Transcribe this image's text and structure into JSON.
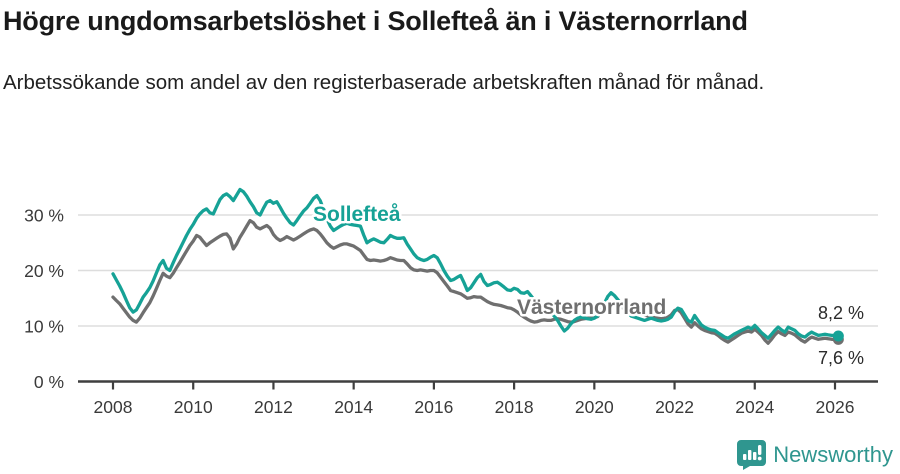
{
  "title": "Högre ungdomsarbetslöshet i Sollefteå än i Västernorrland",
  "subtitle": "Arbetssökande som andel av den registerbaserade arbetskraften månad för månad.",
  "logo": {
    "text": "Newsworthy",
    "icon": "newsworthy-chart-bubble-icon",
    "color": "#2f968f"
  },
  "colors": {
    "solleftea_line": "#16a296",
    "vasternorrland_line": "#6f6f6f",
    "gridline": "#dddddd",
    "axis": "#3f3f3f",
    "background": "#ffffff"
  },
  "chart_data": {
    "type": "line",
    "title": "Högre ungdomsarbetslöshet i Sollefteå än i Västernorrland",
    "subtitle": "Arbetssökande som andel av den registerbaserade arbetskraften månad för månad.",
    "x_unit": "month",
    "x_start": "2008-01",
    "x_end": "2026-02",
    "x_tick_labels": [
      "2008",
      "2010",
      "2012",
      "2014",
      "2016",
      "2018",
      "2020",
      "2022",
      "2024",
      "2026"
    ],
    "y_ticks": [
      0,
      10,
      20,
      30
    ],
    "y_tick_labels": [
      "0 %",
      "10 %",
      "20 %",
      "30 %"
    ],
    "ylim": [
      0,
      36.5
    ],
    "grid": "horizontal",
    "legend": "inline-labels",
    "series": [
      {
        "name": "Sollefteå",
        "color": "#16a296",
        "end_label": "8,2 %",
        "last_value": 8.2,
        "values": [
          19.4,
          18.3,
          17.2,
          16.0,
          14.6,
          13.3,
          12.5,
          12.9,
          14.0,
          15.2,
          16.0,
          16.9,
          18.1,
          19.6,
          21.0,
          21.8,
          20.4,
          20.0,
          21.4,
          22.7,
          23.9,
          25.1,
          26.3,
          27.4,
          28.3,
          29.4,
          30.2,
          30.8,
          31.1,
          30.4,
          30.2,
          31.5,
          32.8,
          33.5,
          33.8,
          33.3,
          32.6,
          33.6,
          34.6,
          34.2,
          33.4,
          32.4,
          31.5,
          30.4,
          30.0,
          31.2,
          32.3,
          32.6,
          32.1,
          32.4,
          31.4,
          30.3,
          29.4,
          28.6,
          28.2,
          29.0,
          29.9,
          30.7,
          31.3,
          32.1,
          33.0,
          33.5,
          32.6,
          31.0,
          29.3,
          28.0,
          27.2,
          27.6,
          28.0,
          28.3,
          28.5,
          28.3,
          28.2,
          28.1,
          28.0,
          26.4,
          25.0,
          25.4,
          25.7,
          25.4,
          25.1,
          25.0,
          25.6,
          26.3,
          26.0,
          25.8,
          25.8,
          25.9,
          24.8,
          23.9,
          23.0,
          22.3,
          22.0,
          21.8,
          22.0,
          22.4,
          22.7,
          22.3,
          21.2,
          20.0,
          19.0,
          18.2,
          18.4,
          18.8,
          19.1,
          17.8,
          16.4,
          16.9,
          17.8,
          18.7,
          19.3,
          18.0,
          17.3,
          17.5,
          17.8,
          17.9,
          17.5,
          17.0,
          16.5,
          16.4,
          16.8,
          16.6,
          16.0,
          15.9,
          16.2,
          15.5,
          14.7,
          14.0,
          13.6,
          13.2,
          12.8,
          12.4,
          11.8,
          11.0,
          10.0,
          9.1,
          9.6,
          10.4,
          11.0,
          11.4,
          11.6,
          11.5,
          11.3,
          11.2,
          11.4,
          11.8,
          12.8,
          14.1,
          15.3,
          16.0,
          15.5,
          14.8,
          14.0,
          13.2,
          12.4,
          11.8,
          11.6,
          11.4,
          11.2,
          11.0,
          11.2,
          11.4,
          11.2,
          11.0,
          10.9,
          11.0,
          11.2,
          11.6,
          12.6,
          13.2,
          13.0,
          12.0,
          11.0,
          10.7,
          11.9,
          11.0,
          10.2,
          9.8,
          9.5,
          9.3,
          9.2,
          8.8,
          8.4,
          8.0,
          7.8,
          8.2,
          8.6,
          8.9,
          9.2,
          9.5,
          9.8,
          9.5,
          10.1,
          9.5,
          8.8,
          8.3,
          7.8,
          8.5,
          9.2,
          9.8,
          9.3,
          8.9,
          9.8,
          9.5,
          9.2,
          8.6,
          8.2,
          8.0,
          8.5,
          8.9,
          8.6,
          8.3,
          8.4,
          8.5,
          8.4,
          8.3,
          8.3,
          8.2
        ]
      },
      {
        "name": "Västernorrland",
        "color": "#6f6f6f",
        "end_label": "7,6 %",
        "last_value": 7.6,
        "values": [
          15.2,
          14.6,
          14.0,
          13.2,
          12.4,
          11.6,
          11.0,
          10.7,
          11.4,
          12.4,
          13.3,
          14.2,
          15.4,
          16.8,
          18.2,
          19.5,
          19.0,
          18.7,
          19.5,
          20.5,
          21.5,
          22.5,
          23.5,
          24.5,
          25.3,
          26.3,
          26.0,
          25.2,
          24.5,
          25.0,
          25.4,
          25.8,
          26.2,
          26.5,
          26.6,
          25.8,
          23.9,
          24.8,
          26.0,
          27.0,
          28.0,
          29.0,
          28.6,
          27.8,
          27.5,
          27.8,
          28.1,
          27.6,
          26.5,
          25.8,
          25.4,
          25.7,
          26.1,
          25.8,
          25.5,
          25.8,
          26.2,
          26.6,
          27.0,
          27.3,
          27.5,
          27.2,
          26.6,
          25.8,
          25.0,
          24.4,
          24.0,
          24.3,
          24.6,
          24.8,
          24.8,
          24.6,
          24.4,
          24.0,
          23.6,
          22.8,
          22.0,
          21.8,
          21.9,
          21.8,
          21.7,
          21.8,
          22.0,
          22.3,
          22.1,
          21.9,
          21.8,
          21.8,
          21.2,
          20.5,
          20.1,
          20.0,
          20.1,
          20.0,
          19.9,
          20.0,
          20.0,
          19.6,
          18.8,
          18.0,
          17.2,
          16.4,
          16.2,
          16.0,
          15.8,
          15.4,
          15.0,
          15.1,
          15.3,
          15.2,
          15.2,
          14.8,
          14.4,
          14.1,
          13.9,
          13.8,
          13.7,
          13.5,
          13.3,
          13.2,
          12.9,
          12.5,
          12.0,
          11.6,
          11.2,
          10.9,
          10.7,
          10.8,
          11.0,
          11.1,
          11.0,
          11.0,
          11.2,
          11.3,
          11.2,
          11.0,
          10.8,
          10.7,
          10.8,
          11.0,
          11.2,
          11.3,
          11.4,
          11.4,
          11.5,
          11.7,
          12.3,
          13.0,
          13.5,
          13.8,
          13.9,
          13.7,
          13.4,
          13.1,
          12.8,
          12.6,
          12.5,
          12.4,
          12.2,
          12.0,
          11.8,
          11.7,
          11.5,
          11.4,
          11.3,
          11.4,
          11.6,
          12.0,
          12.8,
          13.0,
          12.4,
          11.4,
          10.4,
          9.8,
          10.6,
          10.0,
          9.5,
          9.2,
          9.0,
          8.8,
          8.7,
          8.3,
          7.8,
          7.4,
          7.1,
          7.5,
          7.9,
          8.3,
          8.7,
          8.9,
          9.1,
          8.9,
          9.4,
          8.9,
          8.3,
          7.5,
          6.9,
          7.6,
          8.4,
          9.0,
          8.6,
          8.3,
          8.9,
          8.7,
          8.4,
          7.9,
          7.4,
          7.1,
          7.6,
          8.0,
          7.8,
          7.6,
          7.7,
          7.8,
          7.7,
          7.6,
          7.6,
          7.6
        ]
      }
    ]
  }
}
